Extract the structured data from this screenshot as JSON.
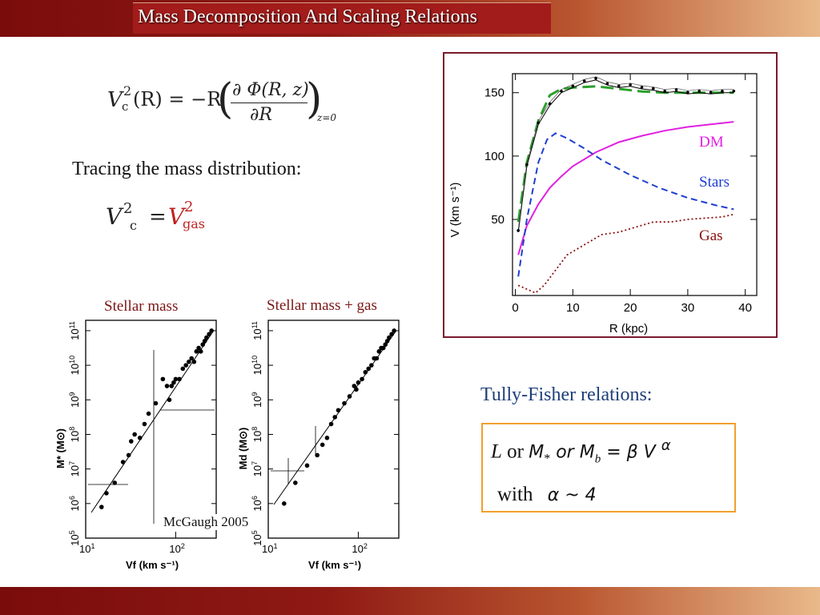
{
  "title": "Mass Decomposition And Scaling Relations",
  "equation1": {
    "lhs": "V",
    "lhs_sup": "2",
    "lhs_sub": "c",
    "lhs_arg": "(R) = −R",
    "numerator": "∂ Φ(R, z)",
    "denominator": "∂R",
    "eval": "z=0"
  },
  "tracing_label": "Tracing the mass distribution:",
  "equation2": {
    "lhs": "V",
    "lhs_sup": "2",
    "lhs_sub": "c",
    "equals": "=",
    "rhs": "V",
    "rhs_sup": "2",
    "rhs_sub": "gas"
  },
  "rotation_curve": {
    "xlabel": "R (kpc)",
    "ylabel": "V (km s⁻¹)",
    "x_ticks": [
      "0",
      "10",
      "20",
      "30",
      "40"
    ],
    "y_ticks": [
      "50",
      "100",
      "150"
    ],
    "legend": {
      "dm": "DM",
      "stars": "Stars",
      "gas": "Gas"
    },
    "colors": {
      "dm": "#e020e0",
      "stars": "#1f3fcf",
      "gas": "#8b1010",
      "total_fit": "#2aa02a",
      "data": "#000000"
    }
  },
  "chart_data": [
    {
      "type": "line",
      "xlabel": "R (kpc)",
      "ylabel": "V (km s⁻¹)",
      "xlim": [
        -0.5,
        42
      ],
      "ylim": [
        -10,
        165
      ],
      "series": [
        {
          "name": "DM",
          "style": "solid",
          "x": [
            0.5,
            2,
            4,
            6,
            8,
            10,
            14,
            18,
            22,
            26,
            30,
            34,
            38
          ],
          "y": [
            22,
            45,
            62,
            75,
            84,
            92,
            103,
            111,
            116,
            120,
            123,
            125,
            127
          ]
        },
        {
          "name": "Stars",
          "style": "dashed",
          "x": [
            0.5,
            2,
            4,
            5.5,
            7,
            9,
            12,
            15,
            20,
            25,
            30,
            35,
            38
          ],
          "y": [
            5,
            50,
            95,
            113,
            118,
            114,
            106,
            97,
            85,
            75,
            67,
            61,
            58
          ]
        },
        {
          "name": "Gas",
          "style": "dotted",
          "x": [
            0.5,
            2,
            3.5,
            5,
            7,
            9,
            12,
            15,
            18,
            21,
            24,
            27,
            30,
            33,
            36,
            38
          ],
          "y": [
            -2,
            -5,
            -8,
            -2,
            10,
            22,
            30,
            38,
            40,
            44,
            48,
            48,
            50,
            51,
            52,
            54
          ]
        },
        {
          "style": "dashed",
          "x": [
            0.5,
            2,
            4,
            6,
            8,
            10,
            14,
            18,
            22,
            26,
            30,
            34,
            38
          ],
          "y": [
            48,
            95,
            128,
            148,
            153,
            154,
            155,
            153,
            151,
            150,
            150,
            150,
            150
          ]
        },
        {
          "style": "dotted-data",
          "x": [
            0.5,
            2,
            4,
            6,
            8,
            10,
            12,
            14,
            16,
            18,
            20,
            22,
            24,
            26,
            28,
            30,
            32,
            34,
            36,
            38
          ],
          "y": [
            40,
            92,
            125,
            140,
            150,
            154,
            158,
            160,
            156,
            154,
            155,
            153,
            152,
            150,
            151,
            149,
            150,
            149,
            150,
            150
          ]
        }
      ]
    },
    {
      "type": "scatter",
      "label": "Stellar mass",
      "xlabel": "Vf (km s⁻¹)",
      "ylabel": "M* (M⊙)",
      "x_log_range": [
        1,
        2.45
      ],
      "y_log_range": [
        5,
        11.3
      ],
      "x": [
        15,
        17,
        21,
        26,
        30,
        32,
        35,
        40,
        45,
        50,
        60,
        72,
        80,
        85,
        90,
        95,
        100,
        110,
        120,
        130,
        140,
        150,
        160,
        170,
        180,
        190,
        200,
        210,
        220,
        235,
        250
      ],
      "y_log": [
        5.9,
        6.3,
        6.6,
        7.2,
        7.4,
        7.8,
        8.0,
        7.9,
        8.3,
        8.6,
        8.9,
        9.6,
        9.4,
        9.0,
        9.4,
        9.5,
        9.6,
        9.6,
        9.9,
        10.0,
        10.1,
        10.2,
        10.1,
        10.4,
        10.5,
        10.4,
        10.6,
        10.7,
        10.8,
        10.9,
        11.0
      ]
    },
    {
      "type": "scatter",
      "label": "Stellar mass + gas",
      "xlabel": "Vf (km s⁻¹)",
      "ylabel": "Md (M⊙)",
      "x_log_range": [
        1,
        2.45
      ],
      "y_log_range": [
        5,
        11.3
      ],
      "x": [
        15,
        20,
        27,
        35,
        40,
        45,
        50,
        55,
        60,
        70,
        80,
        90,
        95,
        100,
        110,
        120,
        130,
        140,
        150,
        160,
        170,
        180,
        190,
        200,
        210,
        220,
        235,
        250
      ],
      "y_log": [
        6.0,
        6.6,
        7.1,
        7.4,
        7.7,
        7.9,
        8.3,
        8.5,
        8.7,
        8.9,
        9.1,
        9.4,
        9.3,
        9.5,
        9.6,
        9.8,
        9.9,
        10.0,
        10.2,
        10.2,
        10.4,
        10.5,
        10.5,
        10.6,
        10.7,
        10.8,
        10.9,
        11.0
      ]
    }
  ],
  "scatter_panels": {
    "left_label": "Stellar mass",
    "right_label": "Stellar mass + gas",
    "x_ticks": [
      "10",
      "10"
    ],
    "x_tick_sups": [
      "1",
      "2"
    ],
    "y_tick_base": "10",
    "y_tick_sups": [
      "5",
      "6",
      "7",
      "8",
      "9",
      "10",
      "11"
    ],
    "left_ylabel": "M* (M⊙)",
    "right_ylabel": "Md (M⊙)",
    "xlabel": "Vf (km s⁻¹)",
    "citation": "McGaugh 2005"
  },
  "tully_fisher": {
    "label": "Tully-Fisher relations:",
    "line1": {
      "L": "L",
      "or1": " or ",
      "M": "M",
      "M_sub": "*",
      "or2": " or ",
      "Mb": "M",
      "Mb_sub": "b",
      "eq": " = β V ",
      "alpha": "α"
    },
    "line2": {
      "with": "with",
      "rel": "α ~ 4"
    }
  }
}
